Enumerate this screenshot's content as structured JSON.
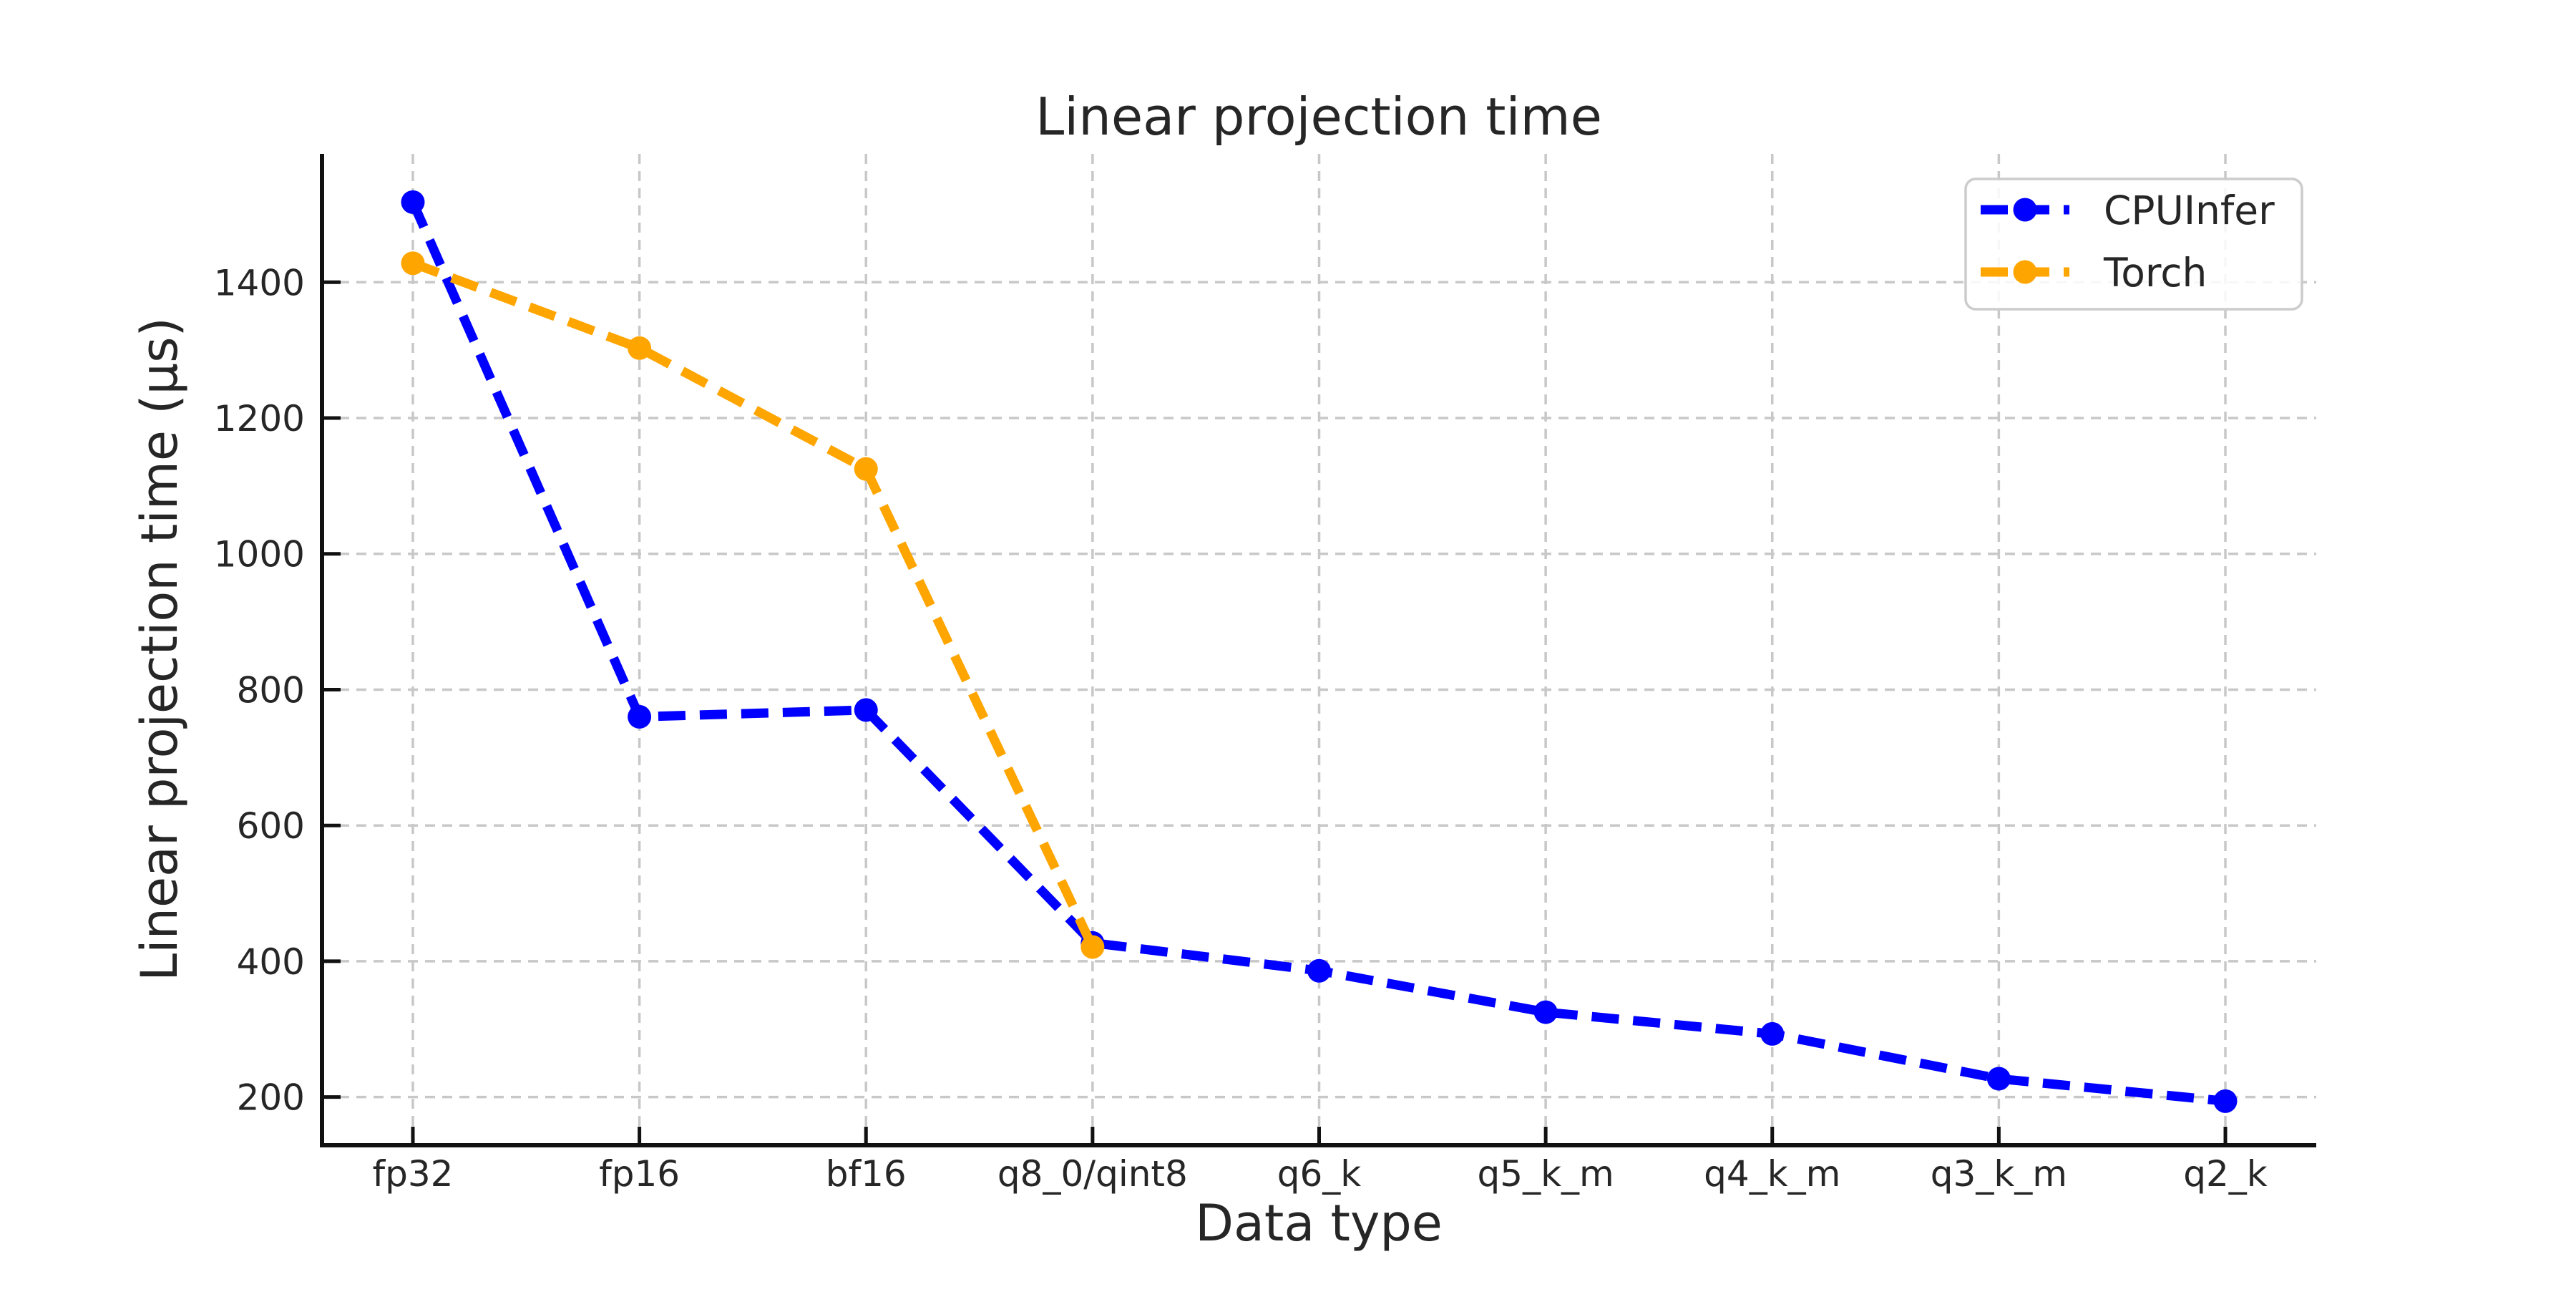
{
  "figure": {
    "background": "#ffffff",
    "text_color": "#262626",
    "spine_color": "#111111",
    "grid_color": "#c8c8c8"
  },
  "chart_data": {
    "type": "line",
    "title": "Linear projection time",
    "xlabel": "Data type",
    "ylabel": "Linear projection time (µs)",
    "categories": [
      "fp32",
      "fp16",
      "bf16",
      "q8_0/qint8",
      "q6_k",
      "q5_k_m",
      "q4_k_m",
      "q3_k_m",
      "q2_k"
    ],
    "yticks": [
      200,
      400,
      600,
      800,
      1000,
      1200,
      1400
    ],
    "ylim": [
      129,
      1589
    ],
    "grid": true,
    "grid_style": "dashed",
    "line_style": "dashed",
    "marker": "circle",
    "legend_position": "upper right",
    "series": [
      {
        "name": "CPUInfer",
        "color": "#0000ff",
        "values": [
          1518,
          760,
          770,
          427,
          386,
          325,
          293,
          227,
          194
        ]
      },
      {
        "name": "Torch",
        "color": "#ffa500",
        "values": [
          1428,
          1303,
          1125,
          421,
          null,
          null,
          null,
          null,
          null
        ]
      }
    ]
  }
}
